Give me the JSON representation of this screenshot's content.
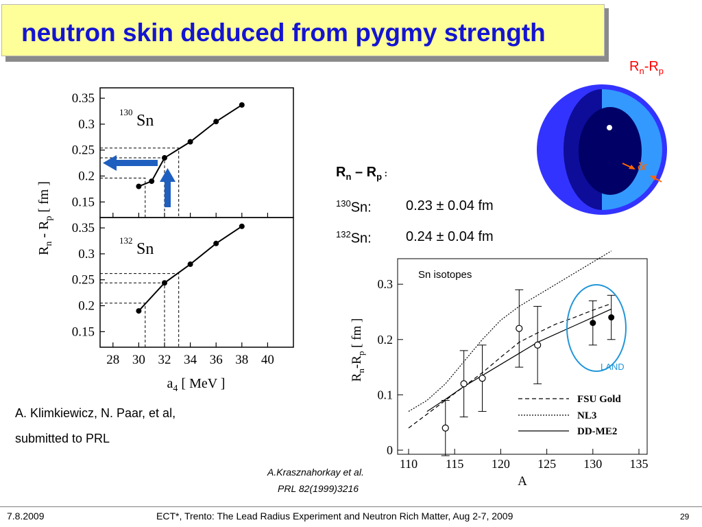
{
  "slide": {
    "title": "neutron skin deduced from pygmy strength",
    "footer": {
      "date": "7.8.2009",
      "event": "ECT*, Trento: The Lead Radius Experiment and Neutron Rich Matter, Aug 2-7, 2009",
      "page": "29"
    }
  },
  "left_panel": {
    "ylabel_main": "R",
    "ylabel_sub_n": "n",
    "ylabel_mid": " - R",
    "ylabel_sub_p": "p",
    "ylabel_unit": " [ fm ]",
    "xlabel_main": "a",
    "xlabel_sub": "4",
    "xlabel_unit": " [ MeV ]",
    "citation_line1": "A. Klimkiewicz, N. Paar, et al,",
    "citation_line2": "submitted to PRL"
  },
  "results": {
    "heading_main": "R",
    "heading_sub_n": "n",
    "heading_dash": " – R",
    "heading_sub_p": "p",
    "heading_colon": " :",
    "rows": [
      {
        "mass": "130",
        "element": "Sn:",
        "value": "0.23 ± 0.04 fm"
      },
      {
        "mass": "132",
        "element": "Sn:",
        "value": "0.24 ± 0.04 fm"
      }
    ]
  },
  "diagram": {
    "label_main": "R",
    "label_sub_n": "n",
    "label_mid": "-R",
    "label_sub_p": "p",
    "delta_label": "δr",
    "colors": {
      "outer": "#3333ff",
      "inner": "#0d0d99",
      "core": "#000066",
      "shell": "#3399ff",
      "arrow": "#ff6600",
      "label": "#ff0000"
    }
  },
  "right_panel": {
    "group_label": "Sn isotopes",
    "circle_label": "LAND",
    "ylabel_main": "R",
    "ylabel_sub_n": "n",
    "ylabel_mid": "-R",
    "ylabel_sub_p": "p",
    "ylabel_unit": " [ fm ]",
    "xlabel": "A",
    "citation_line1": "A.Krasznahorkay et al.",
    "citation_line2": "PRL 82(1999)3216"
  },
  "chart_data": [
    {
      "type": "line",
      "isotope_mass": "130",
      "isotope_symbol": "Sn",
      "x": [
        30,
        31,
        32,
        34,
        36,
        38
      ],
      "y": [
        0.18,
        0.19,
        0.235,
        0.266,
        0.305,
        0.337
      ],
      "xlim": [
        27,
        42
      ],
      "ylim": [
        0.12,
        0.37
      ],
      "yticks": [
        "0.35",
        "0.3",
        "0.25",
        "0.2",
        "0.15"
      ],
      "yticks_values": [
        0.35,
        0.3,
        0.25,
        0.2,
        0.15
      ]
    },
    {
      "type": "line",
      "isotope_mass": "132",
      "isotope_symbol": "Sn",
      "x": [
        30,
        32,
        34,
        36,
        38
      ],
      "y": [
        0.19,
        0.244,
        0.28,
        0.32,
        0.353
      ],
      "xlim": [
        27,
        42
      ],
      "ylim": [
        0.12,
        0.37
      ],
      "xticks": [
        "28",
        "30",
        "32",
        "34",
        "36",
        "38",
        "40"
      ],
      "xticks_values": [
        28,
        30,
        32,
        34,
        36,
        38,
        40
      ],
      "yticks": [
        "0.35",
        "0.3",
        "0.25",
        "0.2",
        "0.15"
      ],
      "yticks_values": [
        0.35,
        0.3,
        0.25,
        0.2,
        0.15
      ]
    },
    {
      "type": "line",
      "xlim": [
        110,
        135
      ],
      "ylim": [
        0,
        0.33
      ],
      "xticks": [
        "110",
        "115",
        "120",
        "125",
        "130",
        "135"
      ],
      "xticks_values": [
        110,
        115,
        120,
        125,
        130,
        135
      ],
      "yticks": [
        "0.3",
        "0.2",
        "0.1",
        "0"
      ],
      "yticks_values": [
        0.3,
        0.2,
        0.1,
        0
      ],
      "series": [
        {
          "name": "FSU Gold",
          "dash": "6,4",
          "x": [
            110,
            112,
            114,
            116,
            118,
            120,
            122,
            124,
            126,
            128,
            130,
            132
          ],
          "y": [
            0.04,
            0.065,
            0.09,
            0.115,
            0.14,
            0.168,
            0.195,
            0.212,
            0.228,
            0.24,
            0.253,
            0.265
          ]
        },
        {
          "name": "NL3",
          "dash": "2,2",
          "x": [
            110,
            112,
            114,
            116,
            118,
            120,
            122,
            124,
            126,
            128,
            130,
            132
          ],
          "y": [
            0.07,
            0.09,
            0.12,
            0.16,
            0.2,
            0.235,
            0.26,
            0.28,
            0.3,
            0.32,
            0.34,
            0.36
          ]
        },
        {
          "name": "DD-ME2",
          "dash": "",
          "x": [
            112,
            114,
            116,
            118,
            120,
            122,
            124,
            126,
            128,
            130,
            132
          ],
          "y": [
            0.07,
            0.092,
            0.115,
            0.135,
            0.155,
            0.175,
            0.195,
            0.21,
            0.225,
            0.24,
            0.255
          ]
        }
      ],
      "points_open": [
        {
          "x": 114,
          "y": 0.04,
          "err": 0.05
        },
        {
          "x": 116,
          "y": 0.12,
          "err": 0.06
        },
        {
          "x": 118,
          "y": 0.13,
          "err": 0.06
        },
        {
          "x": 122,
          "y": 0.22,
          "err": 0.07
        },
        {
          "x": 124,
          "y": 0.19,
          "err": 0.07
        }
      ],
      "points_filled": [
        {
          "x": 130,
          "y": 0.23,
          "err": 0.04
        },
        {
          "x": 132,
          "y": 0.24,
          "err": 0.04
        }
      ]
    }
  ]
}
